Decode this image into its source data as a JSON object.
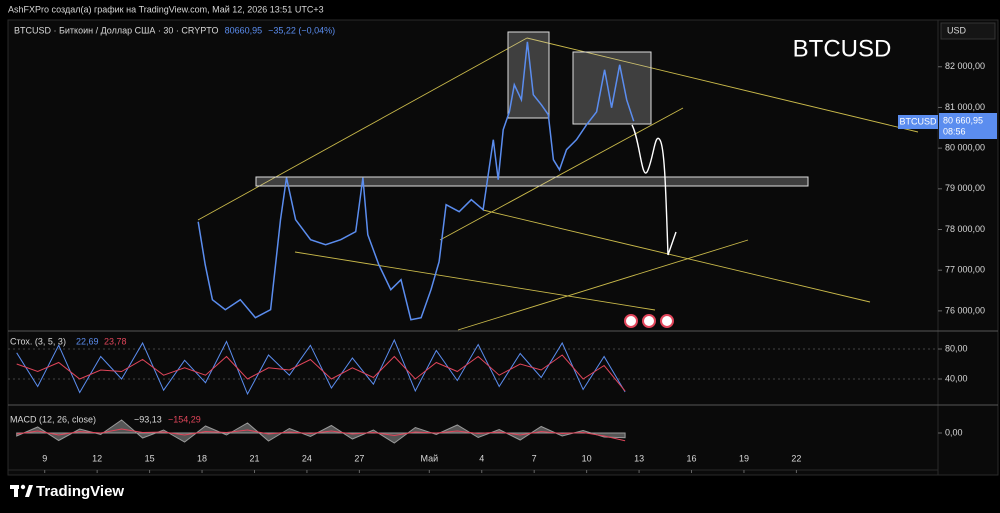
{
  "ui": {
    "top_line": "AshFXPro создал(а) график на TradingView.com, Май 12, 2026 13:51 UTC+3",
    "symbol_line": "BTCUSD · Биткоин / Доллар США · 30 · CRYPTO",
    "price": "80660,95",
    "change": "−35,22 (−0,04%)",
    "currency": "USD",
    "price_tag": {
      "symbol": "BTCUSD",
      "label": "80 660,95",
      "timer": "08:56"
    },
    "logo": "TradingView"
  },
  "chart_data": [
    {
      "type": "line",
      "annotation": "BTCUSD",
      "x": [
        17.78,
        18.18,
        18.59,
        19.33,
        20.19,
        21.05,
        21.92,
        22.49,
        22.83,
        23.35,
        24.21,
        25.07,
        25.93,
        26.79,
        27.2,
        27.48,
        28.11,
        28.8,
        29.38,
        29.95,
        30.53,
        31.1,
        31.56,
        31.96,
        32.71,
        33.4,
        34.08,
        34.37,
        34.66,
        34.94,
        35.23,
        35.58,
        35.86,
        36.27,
        36.61,
        36.95,
        37.41,
        37.81,
        38.1,
        38.45,
        38.85,
        39.42,
        40.0,
        40.57,
        41.03,
        41.43,
        41.89,
        42.29,
        42.69
      ],
      "series": [
        {
          "color": "#5b8def",
          "values": [
            78192,
            77135,
            76275,
            76030,
            76275,
            75833,
            76030,
            78241,
            79273,
            78241,
            77749,
            77627,
            77749,
            77946,
            79273,
            77872,
            77135,
            76521,
            76767,
            75784,
            75833,
            76521,
            77209,
            78609,
            78437,
            78732,
            78486,
            79346,
            80206,
            79224,
            80452,
            80894,
            81558,
            81189,
            82614,
            81312,
            81066,
            80821,
            79715,
            79469,
            79961,
            80206,
            80575,
            80894,
            81926,
            80993,
            82049,
            81189,
            80660.95
          ]
        }
      ],
      "xlim": [
        6.9,
        60.1
      ],
      "xticks": [
        9,
        12,
        15,
        18,
        21,
        24,
        27,
        {
          "value": 31,
          "label": "Май"
        },
        {
          "value": 34,
          "label": "4"
        },
        {
          "value": 37,
          "label": "7"
        },
        {
          "value": 40,
          "label": "10"
        },
        {
          "value": 43,
          "label": "13"
        },
        {
          "value": 46,
          "label": "16"
        },
        {
          "value": 49,
          "label": "19"
        },
        {
          "value": 52,
          "label": "22"
        }
      ],
      "ylim": [
        75530,
        83100
      ],
      "yticks": [
        {
          "value": 76000,
          "label": "76 000,00"
        },
        {
          "value": 77000,
          "label": "77 000,00"
        },
        {
          "value": 78000,
          "label": "78 000,00"
        },
        {
          "value": 79000,
          "label": "79 000,00"
        },
        {
          "value": 80000,
          "label": "80 000,00"
        },
        {
          "value": 81000,
          "label": "81 000,00"
        },
        {
          "value": 82000,
          "label": "82 000,00"
        }
      ]
    },
    {
      "type": "line",
      "title": "Стох. (3, 5, 3)",
      "x": [
        7.4,
        8.6,
        9.8,
        11,
        12.2,
        13.4,
        14.6,
        15.8,
        17,
        18.2,
        19.4,
        20.6,
        21.8,
        23,
        24.2,
        25.4,
        26.6,
        27.8,
        29,
        30.2,
        31.4,
        32.6,
        33.8,
        35,
        36.2,
        37.4,
        38.6,
        39.8,
        41,
        42.2
      ],
      "series": [
        {
          "color": "#5b8def",
          "last_label": "22,69",
          "values": [
            75,
            30,
            85,
            22,
            70,
            40,
            88,
            25,
            65,
            35,
            90,
            20,
            72,
            45,
            85,
            28,
            68,
            33,
            92,
            24,
            78,
            38,
            86,
            30,
            74,
            42,
            88,
            26,
            70,
            22.69
          ]
        },
        {
          "color": "#e0455a",
          "last_label": "23,78",
          "values": [
            60,
            50,
            62,
            40,
            52,
            50,
            66,
            45,
            55,
            45,
            70,
            40,
            55,
            52,
            66,
            40,
            55,
            42,
            70,
            40,
            62,
            50,
            70,
            45,
            60,
            52,
            72,
            40,
            58,
            23.78
          ]
        }
      ],
      "xlim": [
        6.9,
        60.1
      ],
      "ylim": [
        9.3,
        98.7
      ],
      "yticks": [
        {
          "value": 80,
          "label": "80,00"
        },
        {
          "value": 40,
          "label": "40,00"
        }
      ]
    },
    {
      "type": "area",
      "title": "MACD (12, 26, close)",
      "x": [
        7.4,
        8.6,
        9.8,
        11,
        12.2,
        13.4,
        14.6,
        15.8,
        17,
        18.2,
        19.4,
        20.6,
        21.8,
        23,
        24.2,
        25.4,
        26.6,
        27.8,
        29,
        30.2,
        31.4,
        32.6,
        33.8,
        35,
        36.2,
        37.4,
        38.6,
        39.8,
        41,
        42.2
      ],
      "series": [
        {
          "color": "#9a9a9a",
          "last_label": "−93,13",
          "values": [
            -60,
            120,
            -150,
            80,
            -30,
            260,
            -100,
            60,
            -180,
            140,
            -40,
            200,
            -160,
            90,
            -70,
            150,
            -120,
            60,
            -200,
            110,
            -30,
            160,
            -90,
            70,
            -140,
            130,
            -60,
            50,
            -80,
            -93.13
          ]
        },
        {
          "color": "#e0455a",
          "last_label": "−154,29",
          "values": [
            -20,
            40,
            -40,
            30,
            0,
            80,
            10,
            20,
            -40,
            30,
            10,
            60,
            -20,
            20,
            -10,
            40,
            -20,
            10,
            -50,
            20,
            0,
            40,
            -10,
            20,
            -40,
            30,
            -10,
            10,
            -60,
            -154.29
          ]
        }
      ],
      "xlim": [
        6.9,
        60.1
      ],
      "ylim": [
        -740,
        460
      ],
      "yticks": [
        {
          "value": 0,
          "label": "0,00"
        }
      ]
    }
  ]
}
